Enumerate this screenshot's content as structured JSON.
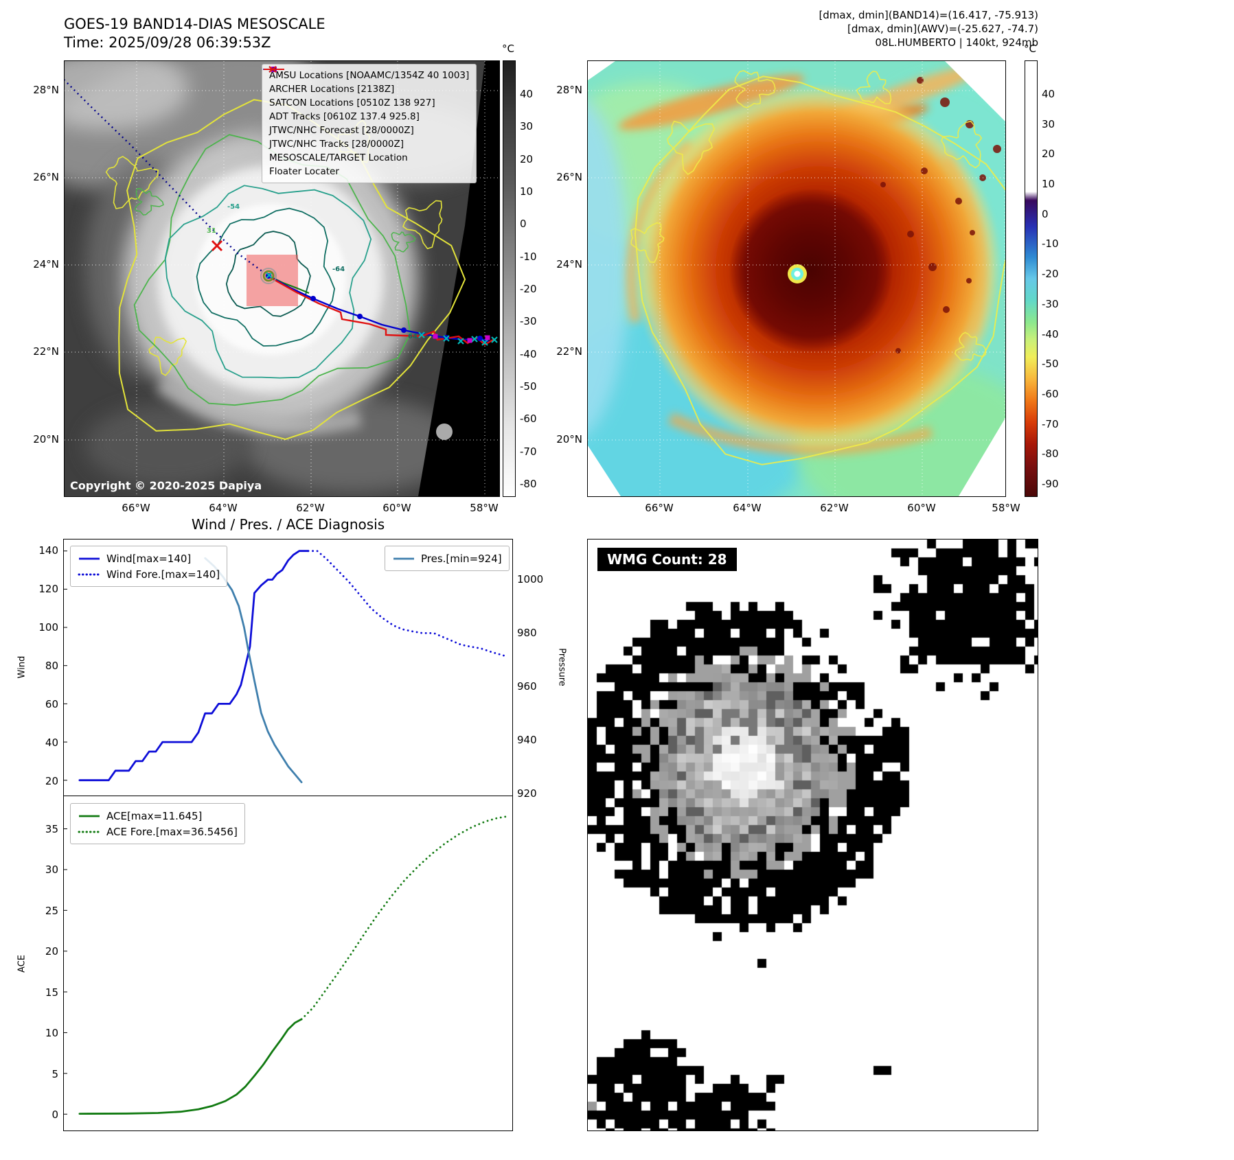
{
  "panel_tl": {
    "title": "GOES-19 BAND14-DIAS MESOSCALE",
    "subtitle": "Time: 2025/09/28 06:39:53Z",
    "copyright": "Copyright © 2020-2025 Dapiya",
    "lat_ticks": [
      "28°N",
      "26°N",
      "24°N",
      "22°N",
      "20°N"
    ],
    "lon_ticks": [
      "66°W",
      "64°W",
      "62°W",
      "60°W",
      "58°W"
    ],
    "colorbar": {
      "unit": "°C",
      "ticks": [
        40,
        30,
        20,
        10,
        0,
        -10,
        -20,
        -30,
        -40,
        -50,
        -60,
        -70,
        -80
      ]
    },
    "legend": [
      {
        "label": "AMSU Locations [NOAAMC/1354Z 40 1003]",
        "marker": "square",
        "color": "#cc00cc"
      },
      {
        "label": "ARCHER Locations [2138Z]",
        "marker": "square",
        "color": "#cc00cc"
      },
      {
        "label": "SATCON Locations [0510Z 138 927]",
        "marker": "x",
        "color": "#00b8b8"
      },
      {
        "label": "ADT Tracks [0610Z 137.4 925.8]",
        "marker": "line",
        "color": "#157a15"
      },
      {
        "label": "JTWC/NHC Forecast [28/0000Z]",
        "marker": "dotted",
        "color": "#0000cc"
      },
      {
        "label": "JTWC/NHC Tracks [28/0000Z]",
        "marker": "line-dot",
        "color": "#0000cc"
      },
      {
        "label": "MESOSCALE/TARGET Location",
        "marker": "x",
        "color": "#e01010"
      },
      {
        "label": "Floater Locater",
        "marker": "line",
        "color": "#e01010"
      }
    ],
    "contour_labels": [
      {
        "text": "31",
        "color": "#4cb44c"
      },
      {
        "text": "-54",
        "color": "#28a08c"
      },
      {
        "text": "-64",
        "color": "#0f6e62"
      },
      {
        "text": "64",
        "color": "#0f6e62"
      }
    ]
  },
  "panel_tr": {
    "header_lines": [
      "[dmax, dmin](BAND14)=(16.417, -75.913)",
      "[dmax, dmin](AWV)=(-25.627, -74.7)",
      "08L.HUMBERTO | 140kt, 924mb"
    ],
    "lat_ticks": [
      "28°N",
      "26°N",
      "24°N",
      "22°N",
      "20°N"
    ],
    "lon_ticks": [
      "66°W",
      "64°W",
      "62°W",
      "60°W",
      "58°W"
    ],
    "colorbar": {
      "unit": "°C",
      "ticks": [
        40,
        30,
        20,
        10,
        0,
        -10,
        -20,
        -30,
        -40,
        -50,
        -60,
        -70,
        -80,
        -90
      ]
    }
  },
  "panel_bl": {
    "title": "Wind / Pres. / ACE Diagnosis",
    "ylabels": {
      "wind": "Wind",
      "pressure": "Pressure",
      "ace": "ACE"
    },
    "legends": {
      "wind": [
        "Wind[max=140]",
        "Wind Fore.[max=140]"
      ],
      "pres": [
        "Pres.[min=924]"
      ],
      "ace": [
        "ACE[max=11.645]",
        "ACE Fore.[max=36.5456]"
      ]
    }
  },
  "panel_br": {
    "badge": "WMG Count: 28"
  },
  "chart_data": [
    {
      "type": "line",
      "subplot": "wind_pressure",
      "title": "Wind / Pres. / ACE Diagnosis",
      "xlim": [
        0,
        1
      ],
      "ylabel_left": "Wind",
      "ylabel_right": "Pressure",
      "yticks_left": [
        20,
        40,
        60,
        80,
        100,
        120,
        140
      ],
      "ylim_left": [
        12,
        146
      ],
      "yticks_right": [
        920,
        940,
        960,
        980,
        1000
      ],
      "ylim_right": [
        919,
        1015
      ],
      "series": [
        {
          "name": "Wind[max=140]",
          "axis": "left",
          "style": "solid",
          "color": "#0d0dd8",
          "points": [
            [
              0.035,
              20
            ],
            [
              0.1,
              20
            ],
            [
              0.115,
              25
            ],
            [
              0.145,
              25
            ],
            [
              0.16,
              30
            ],
            [
              0.175,
              30
            ],
            [
              0.19,
              35
            ],
            [
              0.205,
              35
            ],
            [
              0.22,
              40
            ],
            [
              0.285,
              40
            ],
            [
              0.3,
              45
            ],
            [
              0.315,
              55
            ],
            [
              0.33,
              55
            ],
            [
              0.345,
              60
            ],
            [
              0.37,
              60
            ],
            [
              0.385,
              65
            ],
            [
              0.395,
              70
            ],
            [
              0.405,
              80
            ],
            [
              0.415,
              90
            ],
            [
              0.425,
              118
            ],
            [
              0.44,
              122
            ],
            [
              0.455,
              125
            ],
            [
              0.465,
              125
            ],
            [
              0.475,
              128
            ],
            [
              0.487,
              130
            ],
            [
              0.5,
              135
            ],
            [
              0.512,
              138
            ],
            [
              0.525,
              140
            ],
            [
              0.545,
              140
            ]
          ]
        },
        {
          "name": "Wind Fore.[max=140]",
          "axis": "left",
          "style": "dotted",
          "color": "#0d0dd8",
          "points": [
            [
              0.545,
              140
            ],
            [
              0.565,
              140
            ],
            [
              0.585,
              136
            ],
            [
              0.61,
              130
            ],
            [
              0.635,
              124
            ],
            [
              0.66,
              117
            ],
            [
              0.685,
              110
            ],
            [
              0.71,
              105
            ],
            [
              0.735,
              101
            ],
            [
              0.755,
              99
            ],
            [
              0.775,
              98
            ],
            [
              0.8,
              97
            ],
            [
              0.825,
              97
            ],
            [
              0.845,
              95
            ],
            [
              0.865,
              93
            ],
            [
              0.885,
              91
            ],
            [
              0.905,
              90
            ],
            [
              0.93,
              89
            ],
            [
              0.955,
              87
            ],
            [
              0.985,
              85
            ]
          ]
        },
        {
          "name": "Pres.[min=924]",
          "axis": "right",
          "style": "solid",
          "color": "#3f7fad",
          "points": [
            [
              0.315,
              1008
            ],
            [
              0.335,
              1005
            ],
            [
              0.355,
              1001
            ],
            [
              0.375,
              996
            ],
            [
              0.39,
              990
            ],
            [
              0.402,
              982
            ],
            [
              0.413,
              972
            ],
            [
              0.425,
              962
            ],
            [
              0.44,
              950
            ],
            [
              0.455,
              943
            ],
            [
              0.47,
              938
            ],
            [
              0.485,
              934
            ],
            [
              0.5,
              930
            ],
            [
              0.515,
              927
            ],
            [
              0.53,
              924
            ]
          ]
        }
      ]
    },
    {
      "type": "line",
      "subplot": "ace",
      "xlim": [
        0,
        1
      ],
      "ylabel_left": "ACE",
      "yticks_left": [
        0,
        5,
        10,
        15,
        20,
        25,
        30,
        35
      ],
      "ylim_left": [
        -2,
        39
      ],
      "series": [
        {
          "name": "ACE[max=11.645]",
          "axis": "left",
          "style": "solid",
          "color": "#117a11",
          "points": [
            [
              0.035,
              0.05
            ],
            [
              0.14,
              0.08
            ],
            [
              0.21,
              0.15
            ],
            [
              0.26,
              0.3
            ],
            [
              0.3,
              0.6
            ],
            [
              0.33,
              1.0
            ],
            [
              0.36,
              1.6
            ],
            [
              0.385,
              2.4
            ],
            [
              0.405,
              3.4
            ],
            [
              0.425,
              4.7
            ],
            [
              0.445,
              6.1
            ],
            [
              0.465,
              7.7
            ],
            [
              0.485,
              9.2
            ],
            [
              0.5,
              10.4
            ],
            [
              0.515,
              11.2
            ],
            [
              0.53,
              11.645
            ]
          ]
        },
        {
          "name": "ACE Fore.[max=36.5456]",
          "axis": "left",
          "style": "dotted",
          "color": "#117a11",
          "points": [
            [
              0.53,
              11.645
            ],
            [
              0.555,
              13.0
            ],
            [
              0.58,
              14.9
            ],
            [
              0.61,
              17.2
            ],
            [
              0.64,
              19.6
            ],
            [
              0.67,
              22.1
            ],
            [
              0.7,
              24.5
            ],
            [
              0.73,
              26.7
            ],
            [
              0.76,
              28.7
            ],
            [
              0.79,
              30.4
            ],
            [
              0.82,
              31.9
            ],
            [
              0.85,
              33.2
            ],
            [
              0.88,
              34.3
            ],
            [
              0.91,
              35.2
            ],
            [
              0.94,
              35.9
            ],
            [
              0.965,
              36.3
            ],
            [
              0.99,
              36.5456
            ]
          ]
        }
      ]
    }
  ]
}
